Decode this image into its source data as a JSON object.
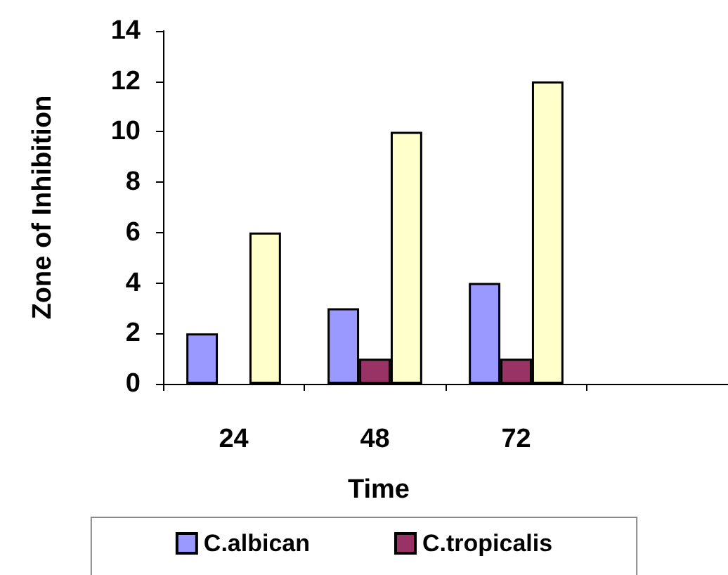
{
  "chart_data": {
    "type": "bar",
    "xlabel": "Time",
    "ylabel": "Zone of Inhibition",
    "categories": [
      "24",
      "48",
      "72",
      null
    ],
    "series": [
      {
        "name": "C.albican",
        "color": "#9999ff",
        "values": [
          2,
          3,
          4,
          null
        ]
      },
      {
        "name": "C.tropicalis",
        "color": "#993366",
        "values": [
          null,
          1,
          1,
          null
        ]
      },
      {
        "color": "#ffffcc",
        "values": [
          6,
          10,
          12,
          null
        ]
      }
    ],
    "ylim": [
      0,
      14
    ],
    "yticks": [
      0,
      2,
      4,
      6,
      8,
      10,
      12,
      14
    ],
    "grid": false,
    "legend": "bottom"
  }
}
